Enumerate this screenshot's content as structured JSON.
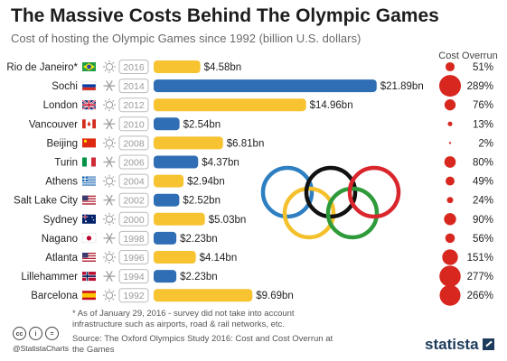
{
  "title": "The Massive Costs Behind The Olympic Games",
  "subtitle": "Cost of hosting the Olympic Games since 1992 (billion U.S. dollars)",
  "overrun_header": "Cost Overrun",
  "footnote": "* As of January 29, 2016 - survey did not take into account infrastructure such as airports, road & rail networks, etc.",
  "source": "Source: The Oxford Olympics Study 2016: Cost and Cost Overrun at the Games",
  "handle": "@StatistaCharts",
  "logo_text": "statista",
  "cc_icons": [
    "cc",
    "i",
    "="
  ],
  "colors": {
    "summer": "#f7c331",
    "winter": "#2f6db5",
    "overrun": "#d7271f",
    "year_border": "#bbbbbb"
  },
  "rings": [
    {
      "name": "blue",
      "color": "#2d7fc1"
    },
    {
      "name": "yellow",
      "color": "#f4c12d"
    },
    {
      "name": "black",
      "color": "#111111"
    },
    {
      "name": "green",
      "color": "#2e9a3a"
    },
    {
      "name": "red",
      "color": "#d9262c"
    }
  ],
  "chart_data": {
    "type": "bar",
    "orientation": "horizontal",
    "xlim": [
      0,
      22
    ],
    "categories": [
      "Rio de Janeiro*",
      "Sochi",
      "London",
      "Vancouver",
      "Beijing",
      "Turin",
      "Athens",
      "Salt Lake City",
      "Sydney",
      "Nagano",
      "Atlanta",
      "Lillehammer",
      "Barcelona"
    ],
    "years": [
      "2016",
      "2014",
      "2012",
      "2010",
      "2008",
      "2006",
      "2004",
      "2002",
      "2000",
      "1998",
      "1996",
      "1994",
      "1992"
    ],
    "season": [
      "summer",
      "winter",
      "summer",
      "winter",
      "summer",
      "winter",
      "summer",
      "winter",
      "summer",
      "winter",
      "summer",
      "winter",
      "summer"
    ],
    "flags": [
      "brazil",
      "russia",
      "uk",
      "canada",
      "china",
      "italy",
      "greece",
      "usa",
      "australia",
      "japan",
      "usa",
      "norway",
      "spain"
    ],
    "values": [
      4.58,
      21.89,
      14.96,
      2.54,
      6.81,
      4.37,
      2.94,
      2.52,
      5.03,
      2.23,
      4.14,
      2.23,
      9.69
    ],
    "value_labels": [
      "$4.58bn",
      "$21.89bn",
      "$14.96bn",
      "$2.54bn",
      "$6.81bn",
      "$4.37bn",
      "$2.94bn",
      "$2.52bn",
      "$5.03bn",
      "$2.23bn",
      "$4.14bn",
      "$2.23bn",
      "$9.69bn"
    ],
    "cost_overrun_percent": [
      51,
      289,
      76,
      13,
      2,
      80,
      49,
      24,
      90,
      56,
      151,
      277,
      266
    ],
    "cost_overrun_labels": [
      "51%",
      "289%",
      "76%",
      "13%",
      "2%",
      "80%",
      "49%",
      "24%",
      "90%",
      "56%",
      "151%",
      "277%",
      "266%"
    ]
  }
}
